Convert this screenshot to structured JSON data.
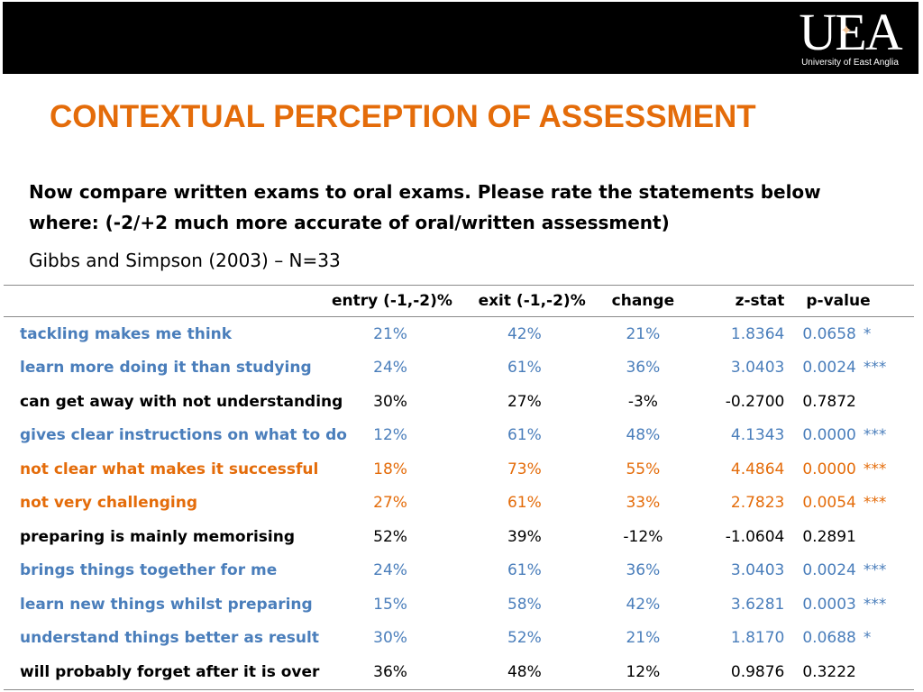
{
  "logo": {
    "mark": "UEA",
    "star": "✦",
    "text": "University of East Anglia"
  },
  "title": "CONTEXTUAL PERCEPTION OF ASSESSMENT",
  "prompt": {
    "line1": "Now compare written exams to oral exams. Please rate the statements below",
    "line2": "where: (-2/+2 much more accurate of oral/written assessment)"
  },
  "citation": "Gibbs and Simpson (2003) – N=33",
  "colors": {
    "blue": "#4a7ebb",
    "orange": "#e46c0a",
    "black": "#000000",
    "title": "#e46c0a"
  },
  "table": {
    "headers": [
      "",
      "entry (-1,-2)%",
      "exit (-1,-2)%",
      "change",
      "z-stat",
      "p-value"
    ],
    "rows": [
      {
        "statement": "tackling makes me think",
        "entry": "21%",
        "exit": "42%",
        "change": "21%",
        "z": "1.8364",
        "p": "0.0658",
        "sig": "*",
        "color": "blue"
      },
      {
        "statement": "learn more doing it than studying",
        "entry": "24%",
        "exit": "61%",
        "change": "36%",
        "z": "3.0403",
        "p": "0.0024",
        "sig": "***",
        "color": "blue"
      },
      {
        "statement": "can get away with not understanding",
        "entry": "30%",
        "exit": "27%",
        "change": "-3%",
        "z": "-0.2700",
        "p": "0.7872",
        "sig": "",
        "color": "black"
      },
      {
        "statement": "gives clear instructions on what to do",
        "entry": "12%",
        "exit": "61%",
        "change": "48%",
        "z": "4.1343",
        "p": "0.0000",
        "sig": "***",
        "color": "blue"
      },
      {
        "statement": "not clear what makes it successful",
        "entry": "18%",
        "exit": "73%",
        "change": "55%",
        "z": "4.4864",
        "p": "0.0000",
        "sig": "***",
        "color": "orange"
      },
      {
        "statement": "not very challenging",
        "entry": "27%",
        "exit": "61%",
        "change": "33%",
        "z": "2.7823",
        "p": "0.0054",
        "sig": "***",
        "color": "orange"
      },
      {
        "statement": "preparing is mainly memorising",
        "entry": "52%",
        "exit": "39%",
        "change": "-12%",
        "z": "-1.0604",
        "p": "0.2891",
        "sig": "",
        "color": "black"
      },
      {
        "statement": "brings things together for me",
        "entry": "24%",
        "exit": "61%",
        "change": "36%",
        "z": "3.0403",
        "p": "0.0024",
        "sig": "***",
        "color": "blue"
      },
      {
        "statement": "learn new things whilst preparing",
        "entry": "15%",
        "exit": "58%",
        "change": "42%",
        "z": "3.6281",
        "p": "0.0003",
        "sig": "***",
        "color": "blue"
      },
      {
        "statement": "understand things better as result",
        "entry": "30%",
        "exit": "52%",
        "change": "21%",
        "z": "1.8170",
        "p": "0.0688",
        "sig": "*",
        "color": "blue"
      },
      {
        "statement": "will probably forget after it is over",
        "entry": "36%",
        "exit": "48%",
        "change": "12%",
        "z": "0.9876",
        "p": "0.3222",
        "sig": "",
        "color": "black"
      }
    ]
  }
}
